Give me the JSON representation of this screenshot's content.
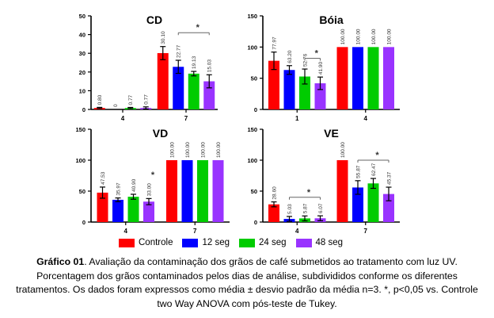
{
  "colors": {
    "Controle": "#ff0000",
    "12 seg": "#0000ff",
    "24 seg": "#00cc00",
    "48 seg": "#9933ff",
    "axis": "#000000",
    "sig": "#666666"
  },
  "legend": {
    "items": [
      "Controle",
      "12 seg",
      "24 seg",
      "48 seg"
    ]
  },
  "caption": {
    "label": "Gráfico 01",
    "text": ". Avaliação da contaminação dos grãos de café submetidos ao tratamento com luz UV. Porcentagem dos grãos contaminados pelos dias de análise, subdivididos conforme os diferentes tratamentos. Os dados foram expressos como média ± desvio padrão da média n=3. *, p<0,05 vs. Controle two Way ANOVA com pós-teste de Tukey."
  },
  "chart_data": [
    {
      "type": "bar",
      "title": "CD",
      "categories": [
        "4",
        "7"
      ],
      "ylim": [
        0,
        50
      ],
      "yticks": [
        0,
        10,
        20,
        30,
        40,
        50
      ],
      "series": [
        {
          "name": "Controle",
          "values": [
            0.8,
            30.1
          ],
          "errors": [
            0.3,
            3.5
          ],
          "labels": [
            "0.80",
            "30.10"
          ]
        },
        {
          "name": "12 seg",
          "values": [
            0,
            22.77
          ],
          "errors": [
            0,
            3.5
          ],
          "labels": [
            "0",
            "22.77"
          ]
        },
        {
          "name": "24 seg",
          "values": [
            0.77,
            19.13
          ],
          "errors": [
            0.3,
            1.2
          ],
          "labels": [
            "0.77",
            "19.13"
          ]
        },
        {
          "name": "48 seg",
          "values": [
            0.77,
            15.03
          ],
          "errors": [
            0.6,
            3.5
          ],
          "labels": [
            "0.77",
            "15.03"
          ]
        }
      ],
      "significance": [
        {
          "category": 1,
          "from": 1,
          "to": 3,
          "y": 41,
          "label": "*"
        }
      ]
    },
    {
      "type": "bar",
      "title": "Bóia",
      "categories": [
        "1",
        "4"
      ],
      "ylim": [
        0,
        150
      ],
      "yticks": [
        0,
        50,
        100,
        150
      ],
      "series": [
        {
          "name": "Controle",
          "values": [
            77.97,
            100.0
          ],
          "errors": [
            14,
            0
          ],
          "labels": [
            "77.97",
            "100.00"
          ]
        },
        {
          "name": "12 seg",
          "values": [
            63.2,
            100.0
          ],
          "errors": [
            7,
            0
          ],
          "labels": [
            "63.20",
            "100.00"
          ]
        },
        {
          "name": "24 seg",
          "values": [
            52.76,
            100.0
          ],
          "errors": [
            12,
            0
          ],
          "labels": [
            "52.76",
            "100.00"
          ]
        },
        {
          "name": "48 seg",
          "values": [
            41.9,
            100.0
          ],
          "errors": [
            10,
            0
          ],
          "labels": [
            "41.90",
            "100.00"
          ]
        }
      ],
      "significance": [
        {
          "category": 0,
          "from": 2,
          "to": 3,
          "y": 82,
          "label": "*"
        }
      ]
    },
    {
      "type": "bar",
      "title": "VD",
      "categories": [
        "4",
        "7"
      ],
      "ylim": [
        0,
        150
      ],
      "yticks": [
        0,
        50,
        100,
        150
      ],
      "series": [
        {
          "name": "Controle",
          "values": [
            47.53,
            100.0
          ],
          "errors": [
            9,
            0
          ],
          "labels": [
            "47.53",
            "100.00"
          ]
        },
        {
          "name": "12 seg",
          "values": [
            35.97,
            100.0
          ],
          "errors": [
            3,
            0
          ],
          "labels": [
            "35.97",
            "100.00"
          ]
        },
        {
          "name": "24 seg",
          "values": [
            40.9,
            100.0
          ],
          "errors": [
            4,
            0
          ],
          "labels": [
            "40.90",
            "100.00"
          ]
        },
        {
          "name": "48 seg",
          "values": [
            33.0,
            100.0
          ],
          "errors": [
            5,
            0
          ],
          "labels": [
            "33.00",
            "100.00"
          ]
        }
      ],
      "significance": [
        {
          "category": 0,
          "from": 3,
          "to": 3,
          "y": 68,
          "label": "*"
        }
      ]
    },
    {
      "type": "bar",
      "title": "VE",
      "categories": [
        "4",
        "7"
      ],
      "ylim": [
        0,
        150
      ],
      "yticks": [
        0,
        50,
        100,
        150
      ],
      "series": [
        {
          "name": "Controle",
          "values": [
            28.6,
            100.0
          ],
          "errors": [
            4,
            0
          ],
          "labels": [
            "28.60",
            "100.00"
          ]
        },
        {
          "name": "12 seg",
          "values": [
            5.03,
            55.87
          ],
          "errors": [
            4,
            11
          ],
          "labels": [
            "5.03",
            "55.87"
          ]
        },
        {
          "name": "24 seg",
          "values": [
            5.87,
            62.47
          ],
          "errors": [
            4,
            8
          ],
          "labels": [
            "5.87",
            "62.47"
          ]
        },
        {
          "name": "48 seg",
          "values": [
            6.07,
            45.37
          ],
          "errors": [
            4,
            11
          ],
          "labels": [
            "6.07",
            "45.37"
          ]
        }
      ],
      "significance": [
        {
          "category": 0,
          "from": 1,
          "to": 3,
          "y": 40,
          "label": "*"
        },
        {
          "category": 1,
          "from": 1,
          "to": 3,
          "y": 100,
          "label": "*"
        }
      ]
    }
  ]
}
